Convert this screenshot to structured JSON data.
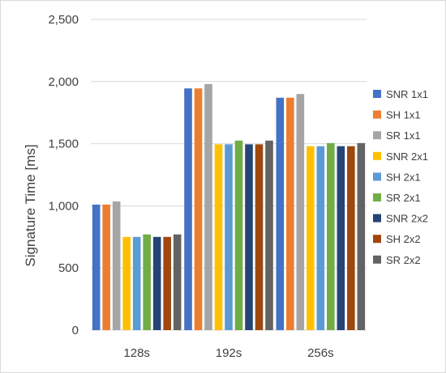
{
  "chart_data": {
    "type": "bar",
    "title": "",
    "xlabel": "",
    "ylabel": "Signature Time [ms]",
    "categories": [
      "128s",
      "192s",
      "256s"
    ],
    "ylim": [
      0,
      2500
    ],
    "yticks": [
      0,
      500,
      1000,
      1500,
      2000,
      2500
    ],
    "ytick_labels": [
      "0",
      "500",
      "1,000",
      "1,500",
      "2,000",
      "2,500"
    ],
    "grid": "horizontal",
    "legend_position": "right",
    "series": [
      {
        "name": "SNR 1x1",
        "color": "#4472C4",
        "values": [
          1010,
          1945,
          1870
        ]
      },
      {
        "name": "SH 1x1",
        "color": "#ED7D31",
        "values": [
          1010,
          1945,
          1870
        ]
      },
      {
        "name": "SR 1x1",
        "color": "#A5A5A5",
        "values": [
          1035,
          1980,
          1900
        ]
      },
      {
        "name": "SNR 2x1",
        "color": "#FFC000",
        "values": [
          750,
          1495,
          1480
        ]
      },
      {
        "name": "SH 2x1",
        "color": "#5B9BD5",
        "values": [
          750,
          1495,
          1480
        ]
      },
      {
        "name": "SR 2x1",
        "color": "#70AD47",
        "values": [
          770,
          1525,
          1505
        ]
      },
      {
        "name": "SNR 2x2",
        "color": "#264478",
        "values": [
          750,
          1495,
          1480
        ]
      },
      {
        "name": "SH 2x2",
        "color": "#9E480E",
        "values": [
          750,
          1495,
          1480
        ]
      },
      {
        "name": "SR 2x2",
        "color": "#636363",
        "values": [
          770,
          1525,
          1505
        ]
      }
    ]
  }
}
